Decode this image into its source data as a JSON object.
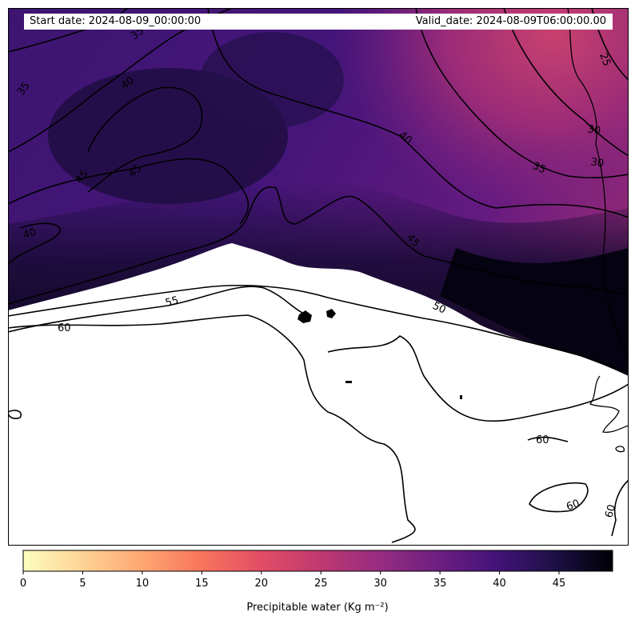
{
  "header": {
    "start_date": "Start date: 2024-08-09_00:00:00",
    "valid_date": "Valid_date: 2024-08-09T06:00:00.00"
  },
  "map": {
    "field": "precipitable water",
    "colormap": "magma_r",
    "contour_levels": [
      25,
      30,
      35,
      40,
      45,
      50,
      55,
      60
    ],
    "contour_labels": [
      "35",
      "35",
      "40",
      "45",
      "45",
      "40",
      "40",
      "35",
      "30",
      "30",
      "25",
      "45",
      "50",
      "55",
      "60",
      "60",
      "60",
      "60"
    ],
    "masked_color": "#ffffff",
    "line_color": "#000000"
  },
  "colorbar": {
    "label": "Precipitable water (Kg m⁻²)",
    "ticks": [
      "0",
      "5",
      "10",
      "15",
      "20",
      "25",
      "30",
      "35",
      "40",
      "45"
    ],
    "range": [
      0,
      49.5
    ]
  }
}
